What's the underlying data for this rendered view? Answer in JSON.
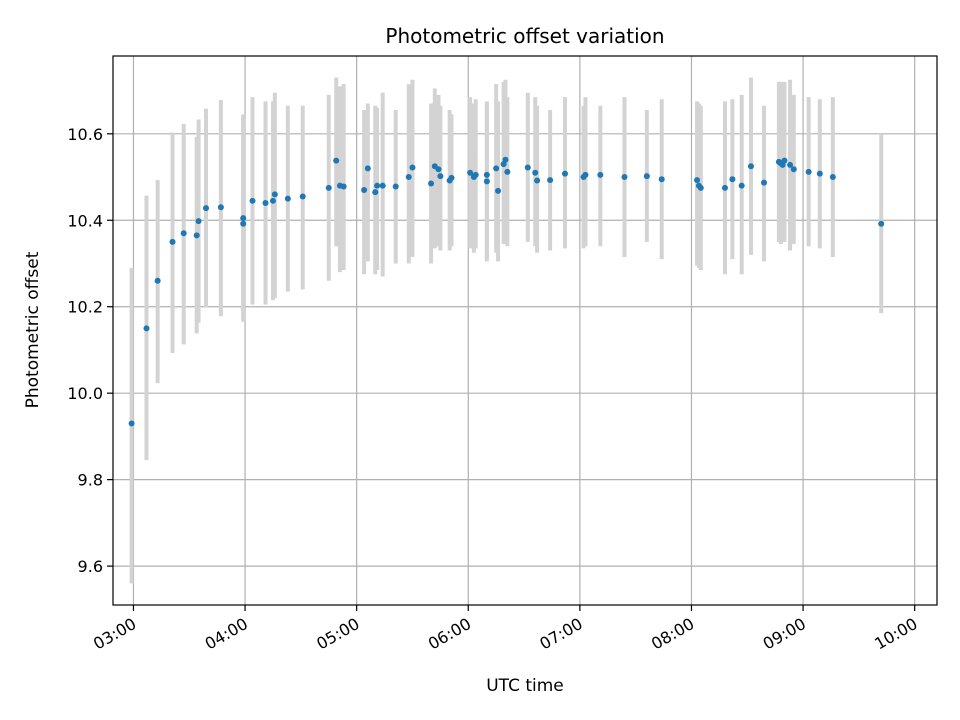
{
  "chart_data": {
    "type": "scatter",
    "title": "Photometric offset variation",
    "xlabel": "UTC time",
    "ylabel": "Photometric offset",
    "x_tick_labels": [
      "03:00",
      "04:00",
      "05:00",
      "06:00",
      "07:00",
      "08:00",
      "09:00",
      "10:00"
    ],
    "y_tick_labels": [
      "9.6",
      "9.8",
      "10.0",
      "10.2",
      "10.4",
      "10.6"
    ],
    "y_ticks": [
      9.6,
      9.8,
      10.0,
      10.2,
      10.4,
      10.6
    ],
    "xlim": [
      "02:49",
      "10:12"
    ],
    "ylim": [
      9.51,
      10.78
    ],
    "grid": true,
    "marker_color": "#1f77b4",
    "errorbar_color": "#d3d3d3",
    "points": [
      {
        "time": "02:59",
        "y": 9.93,
        "lo": 9.56,
        "hi": 10.29
      },
      {
        "time": "03:07",
        "y": 10.15,
        "lo": 9.845,
        "hi": 10.457
      },
      {
        "time": "03:13",
        "y": 10.26,
        "lo": 10.023,
        "hi": 10.493
      },
      {
        "time": "03:21",
        "y": 10.35,
        "lo": 10.093,
        "hi": 10.603
      },
      {
        "time": "03:27",
        "y": 10.37,
        "lo": 10.113,
        "hi": 10.623
      },
      {
        "time": "03:34",
        "y": 10.365,
        "lo": 10.138,
        "hi": 10.593
      },
      {
        "time": "03:35",
        "y": 10.398,
        "lo": 10.163,
        "hi": 10.633
      },
      {
        "time": "03:39",
        "y": 10.428,
        "lo": 10.198,
        "hi": 10.658
      },
      {
        "time": "03:47",
        "y": 10.43,
        "lo": 10.178,
        "hi": 10.678
      },
      {
        "time": "03:59",
        "y": 10.392,
        "lo": 10.165,
        "hi": 10.645
      },
      {
        "time": "03:59",
        "y": 10.405,
        "lo": 10.175,
        "hi": 10.635
      },
      {
        "time": "04:04",
        "y": 10.445,
        "lo": 10.205,
        "hi": 10.685
      },
      {
        "time": "04:11",
        "y": 10.44,
        "lo": 10.205,
        "hi": 10.675
      },
      {
        "time": "04:15",
        "y": 10.445,
        "lo": 10.215,
        "hi": 10.675
      },
      {
        "time": "04:16",
        "y": 10.46,
        "lo": 10.22,
        "hi": 10.695
      },
      {
        "time": "04:23",
        "y": 10.45,
        "lo": 10.235,
        "hi": 10.665
      },
      {
        "time": "04:31",
        "y": 10.455,
        "lo": 10.24,
        "hi": 10.665
      },
      {
        "time": "04:45",
        "y": 10.475,
        "lo": 10.26,
        "hi": 10.69
      },
      {
        "time": "04:49",
        "y": 10.538,
        "lo": 10.34,
        "hi": 10.73
      },
      {
        "time": "04:51",
        "y": 10.48,
        "lo": 10.28,
        "hi": 10.71
      },
      {
        "time": "04:53",
        "y": 10.478,
        "lo": 10.285,
        "hi": 10.715
      },
      {
        "time": "05:04",
        "y": 10.47,
        "lo": 10.275,
        "hi": 10.655
      },
      {
        "time": "05:06",
        "y": 10.52,
        "lo": 10.305,
        "hi": 10.67
      },
      {
        "time": "05:10",
        "y": 10.465,
        "lo": 10.275,
        "hi": 10.665
      },
      {
        "time": "05:11",
        "y": 10.48,
        "lo": 10.285,
        "hi": 10.66
      },
      {
        "time": "05:14",
        "y": 10.48,
        "lo": 10.27,
        "hi": 10.695
      },
      {
        "time": "05:21",
        "y": 10.478,
        "lo": 10.3,
        "hi": 10.655
      },
      {
        "time": "05:28",
        "y": 10.5,
        "lo": 10.3,
        "hi": 10.715
      },
      {
        "time": "05:30",
        "y": 10.522,
        "lo": 10.315,
        "hi": 10.725
      },
      {
        "time": "05:40",
        "y": 10.485,
        "lo": 10.3,
        "hi": 10.67
      },
      {
        "time": "05:42",
        "y": 10.525,
        "lo": 10.335,
        "hi": 10.705
      },
      {
        "time": "05:44",
        "y": 10.518,
        "lo": 10.34,
        "hi": 10.69
      },
      {
        "time": "05:45",
        "y": 10.502,
        "lo": 10.33,
        "hi": 10.665
      },
      {
        "time": "05:50",
        "y": 10.492,
        "lo": 10.33,
        "hi": 10.655
      },
      {
        "time": "05:51",
        "y": 10.498,
        "lo": 10.34,
        "hi": 10.645
      },
      {
        "time": "06:01",
        "y": 10.51,
        "lo": 10.335,
        "hi": 10.685
      },
      {
        "time": "06:03",
        "y": 10.5,
        "lo": 10.325,
        "hi": 10.67
      },
      {
        "time": "06:04",
        "y": 10.505,
        "lo": 10.335,
        "hi": 10.68
      },
      {
        "time": "06:10",
        "y": 10.49,
        "lo": 10.305,
        "hi": 10.675
      },
      {
        "time": "06:10",
        "y": 10.505,
        "lo": 10.31,
        "hi": 10.66
      },
      {
        "time": "06:15",
        "y": 10.52,
        "lo": 10.325,
        "hi": 10.715
      },
      {
        "time": "06:16",
        "y": 10.468,
        "lo": 10.305,
        "hi": 10.675
      },
      {
        "time": "06:19",
        "y": 10.53,
        "lo": 10.345,
        "hi": 10.72
      },
      {
        "time": "06:20",
        "y": 10.54,
        "lo": 10.35,
        "hi": 10.725
      },
      {
        "time": "06:21",
        "y": 10.512,
        "lo": 10.34,
        "hi": 10.685
      },
      {
        "time": "06:32",
        "y": 10.522,
        "lo": 10.35,
        "hi": 10.695
      },
      {
        "time": "06:36",
        "y": 10.51,
        "lo": 10.34,
        "hi": 10.685
      },
      {
        "time": "06:37",
        "y": 10.492,
        "lo": 10.325,
        "hi": 10.665
      },
      {
        "time": "06:44",
        "y": 10.493,
        "lo": 10.33,
        "hi": 10.655
      },
      {
        "time": "06:52",
        "y": 10.508,
        "lo": 10.335,
        "hi": 10.685
      },
      {
        "time": "07:02",
        "y": 10.5,
        "lo": 10.335,
        "hi": 10.665
      },
      {
        "time": "07:03",
        "y": 10.505,
        "lo": 10.34,
        "hi": 10.685
      },
      {
        "time": "07:11",
        "y": 10.505,
        "lo": 10.34,
        "hi": 10.665
      },
      {
        "time": "07:24",
        "y": 10.5,
        "lo": 10.315,
        "hi": 10.685
      },
      {
        "time": "07:36",
        "y": 10.502,
        "lo": 10.35,
        "hi": 10.655
      },
      {
        "time": "07:44",
        "y": 10.495,
        "lo": 10.31,
        "hi": 10.68
      },
      {
        "time": "08:03",
        "y": 10.493,
        "lo": 10.295,
        "hi": 10.675
      },
      {
        "time": "08:04",
        "y": 10.48,
        "lo": 10.29,
        "hi": 10.67
      },
      {
        "time": "08:05",
        "y": 10.475,
        "lo": 10.285,
        "hi": 10.665
      },
      {
        "time": "08:18",
        "y": 10.475,
        "lo": 10.275,
        "hi": 10.675
      },
      {
        "time": "08:22",
        "y": 10.495,
        "lo": 10.31,
        "hi": 10.68
      },
      {
        "time": "08:27",
        "y": 10.48,
        "lo": 10.275,
        "hi": 10.69
      },
      {
        "time": "08:32",
        "y": 10.525,
        "lo": 10.32,
        "hi": 10.73
      },
      {
        "time": "08:39",
        "y": 10.487,
        "lo": 10.305,
        "hi": 10.665
      },
      {
        "time": "08:47",
        "y": 10.535,
        "lo": 10.35,
        "hi": 10.72
      },
      {
        "time": "08:48",
        "y": 10.532,
        "lo": 10.345,
        "hi": 10.72
      },
      {
        "time": "08:49",
        "y": 10.528,
        "lo": 10.35,
        "hi": 10.72
      },
      {
        "time": "08:50",
        "y": 10.538,
        "lo": 10.35,
        "hi": 10.72
      },
      {
        "time": "08:53",
        "y": 10.528,
        "lo": 10.33,
        "hi": 10.725
      },
      {
        "time": "08:55",
        "y": 10.518,
        "lo": 10.345,
        "hi": 10.69
      },
      {
        "time": "09:03",
        "y": 10.512,
        "lo": 10.34,
        "hi": 10.685
      },
      {
        "time": "09:09",
        "y": 10.508,
        "lo": 10.335,
        "hi": 10.68
      },
      {
        "time": "09:16",
        "y": 10.5,
        "lo": 10.315,
        "hi": 10.685
      },
      {
        "time": "09:42",
        "y": 10.392,
        "lo": 10.185,
        "hi": 10.6
      }
    ]
  }
}
